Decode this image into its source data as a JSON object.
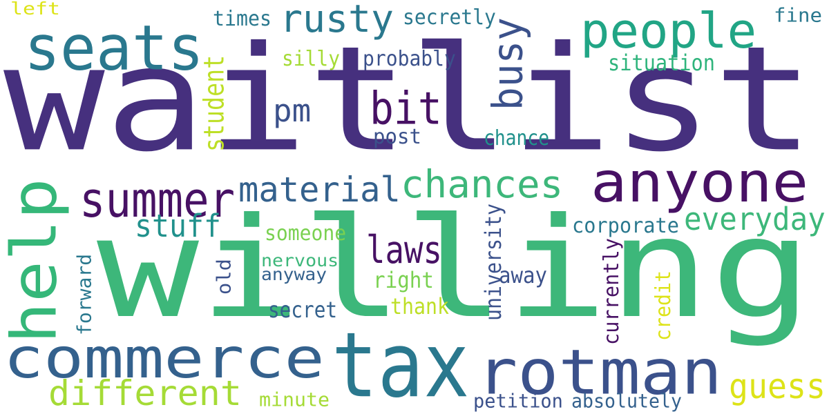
{
  "palette": {
    "deep_purple": "#46307e",
    "dark_purple": "#471164",
    "indigo": "#3b518b",
    "blue": "#34618d",
    "teal": "#2a788e",
    "teal_green": "#21918c",
    "green": "#3db77a",
    "sea_green": "#2fb47c",
    "light_green": "#7ad151",
    "lime": "#bddf26",
    "yellow_green": "#a5db36",
    "yellow": "#dde318",
    "background": "#ffffff"
  },
  "words": [
    {
      "text": "waitlist",
      "color": "#46307e"
    },
    {
      "text": "willing",
      "color": "#3db77a"
    },
    {
      "text": "commerce",
      "color": "#34618d"
    },
    {
      "text": "tax",
      "color": "#2a788e"
    },
    {
      "text": "rotman",
      "color": "#3b518b"
    },
    {
      "text": "anyone",
      "color": "#471164"
    },
    {
      "text": "seats",
      "color": "#2a788e"
    },
    {
      "text": "people",
      "color": "#21a585"
    },
    {
      "text": "rusty",
      "color": "#2a788e"
    },
    {
      "text": "help",
      "color": "#35b779"
    },
    {
      "text": "summer",
      "color": "#471164"
    },
    {
      "text": "material",
      "color": "#34618d"
    },
    {
      "text": "chances",
      "color": "#3db77a"
    },
    {
      "text": "bit",
      "color": "#471164"
    },
    {
      "text": "busy",
      "color": "#3b518b"
    },
    {
      "text": "different",
      "color": "#a5db36"
    },
    {
      "text": "laws",
      "color": "#471164"
    },
    {
      "text": "stuff",
      "color": "#21918c"
    },
    {
      "text": "everyday",
      "color": "#3db77a"
    },
    {
      "text": "pm",
      "color": "#3b518b"
    },
    {
      "text": "guess",
      "color": "#dde318"
    },
    {
      "text": "student",
      "color": "#bddf26"
    },
    {
      "text": "times",
      "color": "#2a788e"
    },
    {
      "text": "secretly",
      "color": "#2a788e"
    },
    {
      "text": "left",
      "color": "#dde318"
    },
    {
      "text": "fine",
      "color": "#2a788e"
    },
    {
      "text": "silly",
      "color": "#a5db36"
    },
    {
      "text": "probably",
      "color": "#3b518b"
    },
    {
      "text": "situation",
      "color": "#2fb47c"
    },
    {
      "text": "post",
      "color": "#3b518b"
    },
    {
      "text": "chance",
      "color": "#21918c"
    },
    {
      "text": "corporate",
      "color": "#2a788e"
    },
    {
      "text": "someone",
      "color": "#7ad151"
    },
    {
      "text": "nervous",
      "color": "#3db77a"
    },
    {
      "text": "anyway",
      "color": "#34618d"
    },
    {
      "text": "right",
      "color": "#7ad151"
    },
    {
      "text": "away",
      "color": "#3b518b"
    },
    {
      "text": "secret",
      "color": "#34618d"
    },
    {
      "text": "thank",
      "color": "#bddf26"
    },
    {
      "text": "university",
      "color": "#3b518b"
    },
    {
      "text": "currently",
      "color": "#471164"
    },
    {
      "text": "credit",
      "color": "#dde318"
    },
    {
      "text": "forward",
      "color": "#2a788e"
    },
    {
      "text": "old",
      "color": "#3b518b"
    },
    {
      "text": "minute",
      "color": "#a5db36"
    },
    {
      "text": "petition",
      "color": "#3b518b"
    },
    {
      "text": "absolutely",
      "color": "#34618d"
    }
  ]
}
